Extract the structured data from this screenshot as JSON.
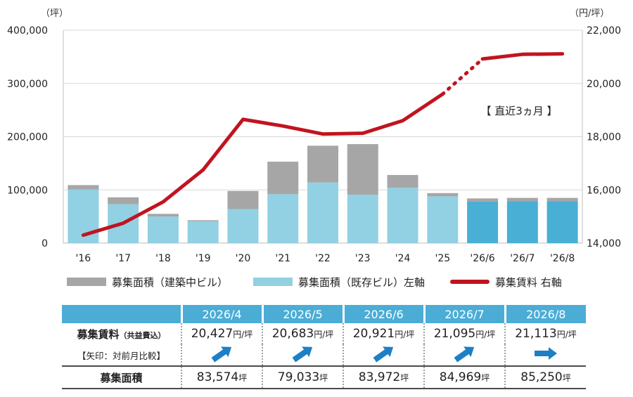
{
  "chart_data": {
    "type": "bar",
    "categories": [
      "'16",
      "'17",
      "'18",
      "'19",
      "'20",
      "'21",
      "'22",
      "'23",
      "'24",
      "'25",
      "'26/6",
      "'26/7",
      "'26/8"
    ],
    "series": [
      {
        "name": "募集面積（既存ビル）左軸",
        "axis": "left",
        "kind": "stacked-bar",
        "values": [
          101000,
          73000,
          50000,
          41000,
          64000,
          92000,
          114000,
          91000,
          104000,
          88000,
          78000,
          79000,
          79000
        ]
      },
      {
        "name": "募集面積（建築中ビル）",
        "axis": "left",
        "kind": "stacked-bar",
        "values": [
          8000,
          13000,
          5000,
          2000,
          34000,
          61000,
          69000,
          95000,
          24000,
          6000,
          6000,
          6000,
          6000
        ]
      },
      {
        "name": "募集賃料 右軸",
        "axis": "right",
        "kind": "line",
        "values": [
          14300,
          14750,
          15550,
          16750,
          18650,
          18400,
          18100,
          18130,
          18600,
          19600,
          20921,
          21095,
          21113
        ]
      }
    ],
    "left_axis": {
      "unit": "（坪）",
      "ylim": [
        0,
        400000
      ],
      "ticks": [
        "0",
        "100,000",
        "200,000",
        "300,000",
        "400,000"
      ]
    },
    "right_axis": {
      "unit": "（円/坪）",
      "ylim": [
        14000,
        22000
      ],
      "ticks": [
        "14,000",
        "16,000",
        "18,000",
        "20,000",
        "22,000"
      ]
    },
    "annotation": "【 直近3ヵ月 】",
    "recent_start_index": 10,
    "colors": {
      "existing": "#92d0e3",
      "existing_recent": "#4aafd4",
      "construction": "#a6a6a6",
      "line": "#c0141f",
      "grid": "#d9d9d9"
    }
  },
  "legend": {
    "construction": "募集面積（建築中ビル）",
    "existing": "募集面積（既存ビル）左軸",
    "rent": "募集賃料 右軸"
  },
  "table": {
    "months": [
      "2026/4",
      "2026/5",
      "2026/6",
      "2026/7",
      "2026/8"
    ],
    "rent_label": "募集賃料",
    "rent_sublabel": "（共益費込）",
    "arrow_label": "【矢印：対前月比較】",
    "area_label": "募集面積",
    "rent_unit": "円/坪",
    "area_unit": "坪",
    "rents": [
      "20,427",
      "20,683",
      "20,921",
      "21,095",
      "21,113"
    ],
    "arrows": [
      "up-right-arrow",
      "up-right-arrow",
      "up-right-arrow",
      "up-right-arrow",
      "right-arrow"
    ],
    "areas": [
      "83,574",
      "79,033",
      "83,972",
      "84,969",
      "85,250"
    ],
    "arrow_color": "#1d7fc4"
  }
}
